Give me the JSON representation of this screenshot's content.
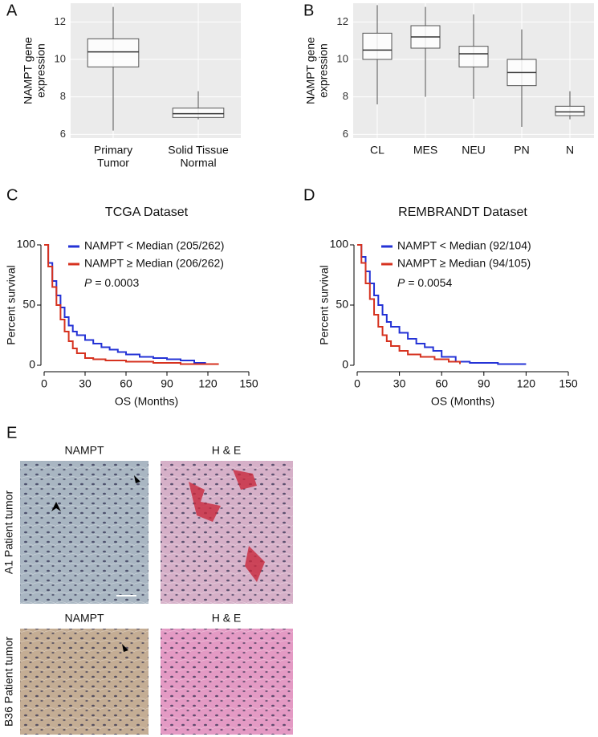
{
  "chart_data": [
    {
      "type": "box",
      "panel": "A",
      "ylabel": [
        "NAMPT gene",
        "expression"
      ],
      "categories": [
        [
          "Primary",
          "Tumor"
        ],
        [
          "Solid Tissue",
          "Normal"
        ]
      ],
      "boxes": [
        {
          "min": 6.2,
          "q1": 9.6,
          "median": 10.4,
          "q3": 11.1,
          "max": 12.8
        },
        {
          "min": 6.8,
          "q1": 6.9,
          "median": 7.1,
          "q3": 7.4,
          "max": 8.3
        }
      ],
      "ylim": [
        5.8,
        13
      ],
      "yticks": [
        6,
        8,
        10,
        12
      ],
      "grid": true,
      "background": "#ebebeb"
    },
    {
      "type": "box",
      "panel": "B",
      "ylabel": [
        "NAMPT gene",
        "expression"
      ],
      "categories": [
        [
          "CL"
        ],
        [
          "MES"
        ],
        [
          "NEU"
        ],
        [
          "PN"
        ],
        [
          "N"
        ]
      ],
      "boxes": [
        {
          "min": 7.6,
          "q1": 10.0,
          "median": 10.5,
          "q3": 11.4,
          "max": 12.9
        },
        {
          "min": 8.0,
          "q1": 10.6,
          "median": 11.2,
          "q3": 11.8,
          "max": 12.8
        },
        {
          "min": 7.9,
          "q1": 9.6,
          "median": 10.3,
          "q3": 10.7,
          "max": 12.4
        },
        {
          "min": 6.4,
          "q1": 8.6,
          "median": 9.3,
          "q3": 10.0,
          "max": 11.6
        },
        {
          "min": 6.8,
          "q1": 7.0,
          "median": 7.2,
          "q3": 7.5,
          "max": 8.3
        }
      ],
      "ylim": [
        5.8,
        13
      ],
      "yticks": [
        6,
        8,
        10,
        12
      ],
      "grid": true,
      "background": "#ebebeb"
    },
    {
      "type": "km",
      "panel": "C",
      "title": "TCGA Dataset",
      "xlabel": "OS (Months)",
      "ylabel": "Percent survival",
      "annotation_p": "P",
      "annotation": "= 0.0003",
      "xlim": [
        0,
        150
      ],
      "xticks": [
        0,
        30,
        60,
        90,
        120,
        150
      ],
      "ylim": [
        0,
        100
      ],
      "yticks": [
        0,
        50,
        100
      ],
      "series": [
        {
          "name": "NAMPT < Median (205/262)",
          "color": "#2433d6",
          "x": [
            0,
            3,
            6,
            9,
            12,
            15,
            18,
            21,
            24,
            30,
            36,
            42,
            48,
            54,
            60,
            70,
            80,
            90,
            100,
            110,
            118
          ],
          "values": [
            100,
            85,
            70,
            58,
            48,
            40,
            33,
            28,
            25,
            21,
            18,
            15,
            13,
            11,
            9,
            7,
            6,
            5,
            4,
            2,
            1
          ]
        },
        {
          "name": "NAMPT ≥ Median (206/262)",
          "color": "#d6321f",
          "x": [
            0,
            3,
            6,
            9,
            12,
            15,
            18,
            21,
            24,
            30,
            36,
            45,
            60,
            80,
            100,
            128
          ],
          "values": [
            100,
            82,
            65,
            50,
            38,
            28,
            20,
            14,
            10,
            6,
            5,
            4,
            3,
            2,
            1,
            1
          ]
        }
      ]
    },
    {
      "type": "km",
      "panel": "D",
      "title": "REMBRANDT Dataset",
      "xlabel": "OS (Months)",
      "ylabel": "Percent survival",
      "annotation_p": "P",
      "annotation": "= 0.0054",
      "xlim": [
        0,
        150
      ],
      "xticks": [
        0,
        30,
        60,
        90,
        120,
        150
      ],
      "ylim": [
        0,
        100
      ],
      "yticks": [
        0,
        50,
        100
      ],
      "series": [
        {
          "name": "NAMPT < Median (92/104)",
          "color": "#2433d6",
          "x": [
            0,
            3,
            6,
            9,
            12,
            15,
            18,
            21,
            24,
            30,
            36,
            42,
            48,
            54,
            60,
            70,
            80,
            100,
            120
          ],
          "values": [
            100,
            90,
            78,
            68,
            58,
            50,
            42,
            36,
            32,
            27,
            22,
            18,
            15,
            12,
            7,
            3,
            2,
            1,
            1
          ]
        },
        {
          "name": "NAMPT ≥ Median (94/105)",
          "color": "#d6321f",
          "x": [
            0,
            3,
            6,
            9,
            12,
            15,
            18,
            21,
            24,
            30,
            36,
            45,
            55,
            65,
            73
          ],
          "values": [
            100,
            85,
            68,
            55,
            42,
            32,
            25,
            20,
            16,
            12,
            9,
            7,
            5,
            3,
            1
          ]
        }
      ]
    }
  ],
  "panel_e": {
    "panel": "E",
    "columns": [
      "NAMPT",
      "H & E"
    ],
    "rows": [
      "A1 Patient tumor",
      "B36 Patient tumor"
    ]
  }
}
